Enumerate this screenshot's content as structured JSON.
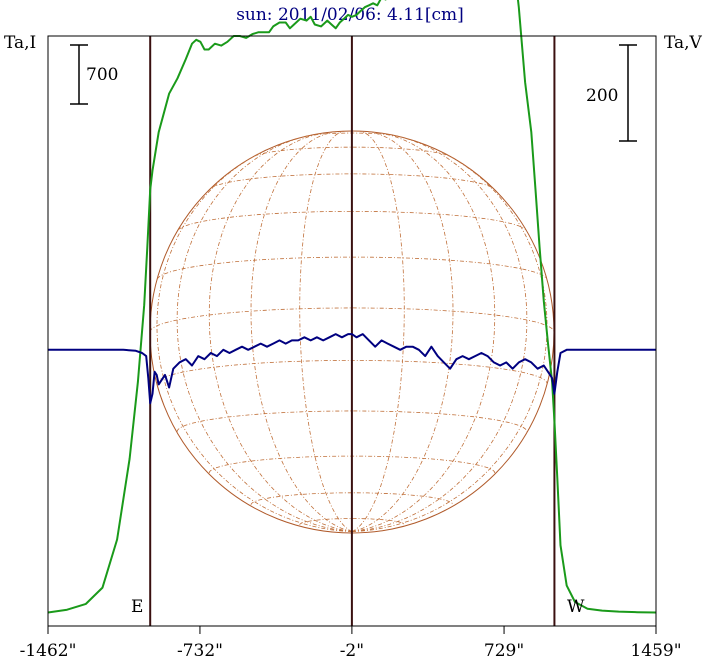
{
  "chart_data": {
    "type": "line",
    "title": "sun: 2011/02/06: 4.11[cm]",
    "ylabel_left": "Ta,I",
    "ylabel_right": "Ta,V",
    "scale_left_label": "700",
    "scale_right_label": "200",
    "east_label": "E",
    "west_label": "W",
    "x_ticks": [
      {
        "value": -1462,
        "label": "-1462\""
      },
      {
        "value": -732,
        "label": "-732\""
      },
      {
        "value": -2,
        "label": "-2\""
      },
      {
        "value": 729,
        "label": "729\""
      },
      {
        "value": 1459,
        "label": "1459\""
      }
    ],
    "xlim": [
      -1462,
      1459
    ],
    "limb_x": [
      -971,
      971
    ],
    "center_x": -2,
    "ylim_I": [
      -70,
      3000
    ],
    "ylim_V": [
      -880,
      1000
    ],
    "colors": {
      "intensity": "#1a9a1a",
      "polarization": "#000080",
      "disk": "#b05a2a",
      "grid": "#c0703a",
      "vertical_line": "#3a1010",
      "frame": "#000000",
      "title": "#000080"
    },
    "series": [
      {
        "key": "I",
        "x": [
          -1462,
          -1370,
          -1280,
          -1200,
          -1130,
          -1070,
          -1030,
          -1000,
          -985,
          -971,
          -960,
          -945,
          -930,
          -910,
          -880,
          -840,
          -800,
          -770,
          -750,
          -730,
          -710,
          -690,
          -660,
          -630,
          -600,
          -570,
          -540,
          -510,
          -480,
          -450,
          -420,
          -400,
          -380,
          -350,
          -320,
          -300,
          -280,
          -250,
          -220,
          -200,
          -180,
          -150,
          -120,
          -100,
          -80,
          -60,
          -40,
          -20,
          -2,
          20,
          40,
          60,
          80,
          100,
          120,
          140,
          160,
          180,
          200,
          220,
          240,
          260,
          280,
          300,
          320,
          340,
          360,
          380,
          400,
          420,
          440,
          460,
          480,
          500,
          520,
          540,
          560,
          580,
          600,
          620,
          640,
          660,
          680,
          700,
          720,
          740,
          760,
          780,
          800,
          830,
          860,
          880,
          900,
          920,
          940,
          960,
          971,
          985,
          1000,
          1030,
          1070,
          1130,
          1200,
          1280,
          1370,
          1459
        ],
        "values": [
          0,
          15,
          45,
          130,
          380,
          800,
          1200,
          1600,
          1900,
          2200,
          2300,
          2400,
          2500,
          2580,
          2700,
          2780,
          2880,
          2960,
          2980,
          2970,
          2930,
          2930,
          2960,
          2950,
          2970,
          3000,
          3000,
          2990,
          3010,
          3020,
          3020,
          3020,
          3050,
          3070,
          3070,
          3040,
          3060,
          3090,
          3080,
          3100,
          3060,
          3050,
          3080,
          3060,
          3040,
          3070,
          3090,
          3110,
          3100,
          3110,
          3130,
          3150,
          3160,
          3170,
          3160,
          3200,
          3190,
          3210,
          3220,
          3230,
          3270,
          3240,
          3280,
          3250,
          3240,
          3270,
          3320,
          3300,
          3340,
          3310,
          3390,
          3330,
          3320,
          3330,
          3300,
          3270,
          3270,
          3320,
          3380,
          3400,
          3470,
          3460,
          3500,
          3520,
          3500,
          3540,
          3520,
          3340,
          3150,
          2760,
          2500,
          2200,
          1900,
          1620,
          1400,
          1200,
          1000,
          700,
          350,
          140,
          55,
          20,
          10,
          5,
          2,
          0
        ]
      },
      {
        "key": "V",
        "x": [
          -1462,
          -1400,
          -1300,
          -1200,
          -1100,
          -1040,
          -1010,
          -990,
          -980,
          -971,
          -960,
          -950,
          -940,
          -930,
          -900,
          -880,
          -860,
          -830,
          -800,
          -770,
          -740,
          -710,
          -680,
          -650,
          -620,
          -590,
          -560,
          -530,
          -500,
          -470,
          -440,
          -410,
          -380,
          -350,
          -320,
          -290,
          -260,
          -230,
          -200,
          -170,
          -140,
          -110,
          -80,
          -50,
          -20,
          -2,
          20,
          50,
          80,
          110,
          140,
          170,
          200,
          230,
          260,
          290,
          320,
          350,
          380,
          410,
          440,
          470,
          500,
          530,
          560,
          590,
          620,
          650,
          680,
          710,
          740,
          770,
          800,
          830,
          860,
          890,
          920,
          950,
          960,
          971,
          985,
          1000,
          1030,
          1060,
          1100,
          1150,
          1200,
          1300,
          1400,
          1459
        ],
        "values": [
          0,
          0,
          0,
          0,
          0,
          -3,
          -10,
          -20,
          -90,
          -170,
          -140,
          -70,
          -80,
          -110,
          -80,
          -120,
          -60,
          -40,
          -30,
          -50,
          -20,
          -30,
          -10,
          -20,
          0,
          -10,
          0,
          10,
          0,
          10,
          20,
          10,
          20,
          30,
          20,
          30,
          30,
          40,
          30,
          40,
          30,
          40,
          50,
          40,
          50,
          50,
          40,
          50,
          30,
          10,
          30,
          20,
          10,
          0,
          10,
          10,
          0,
          -20,
          10,
          -20,
          -40,
          -60,
          -30,
          -20,
          -30,
          -20,
          -10,
          -20,
          -40,
          -50,
          -40,
          -60,
          -40,
          -30,
          -40,
          -60,
          -50,
          -80,
          -90,
          -140,
          -70,
          -10,
          0,
          0,
          0,
          0,
          0,
          0,
          0,
          0
        ]
      }
    ]
  }
}
